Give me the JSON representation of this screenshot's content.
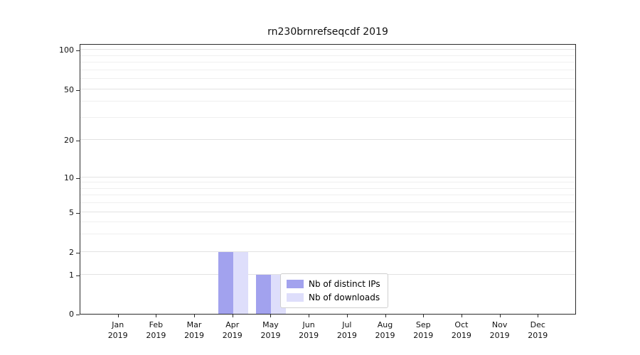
{
  "chart_data": {
    "type": "bar",
    "title": "rn230brnrefseqcdf 2019",
    "categories": [
      "Jan",
      "Feb",
      "Mar",
      "Apr",
      "May",
      "Jun",
      "Jul",
      "Aug",
      "Sep",
      "Oct",
      "Nov",
      "Dec"
    ],
    "year": "2019",
    "series": [
      {
        "name": "Nb of distinct IPs",
        "color": "#a2a2ee",
        "values": [
          0,
          0,
          0,
          2,
          1,
          0,
          0,
          0,
          0,
          0,
          0,
          0
        ]
      },
      {
        "name": "Nb of downloads",
        "color": "#dedefb",
        "values": [
          0,
          0,
          0,
          2,
          1,
          0,
          0,
          0,
          0,
          0,
          0,
          0
        ]
      }
    ],
    "yticks": [
      0,
      1,
      2,
      5,
      10,
      20,
      50,
      100
    ],
    "minor_yticks": [
      3,
      4,
      6,
      7,
      8,
      9,
      30,
      40,
      60,
      70,
      80,
      90
    ],
    "ylim": [
      0,
      110
    ],
    "grid": "on",
    "legend_position": "lower center",
    "xlabel": "",
    "ylabel": ""
  }
}
